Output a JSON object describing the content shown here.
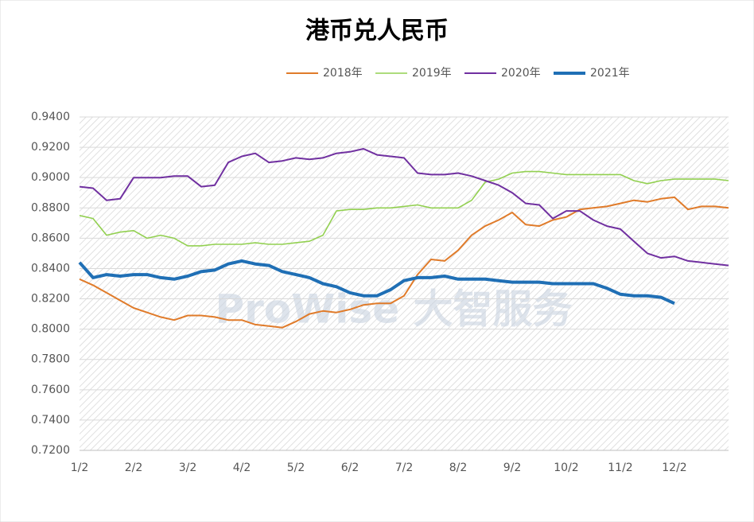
{
  "chart_data": {
    "type": "line",
    "title": "港币兑人民币",
    "watermark": "ProWise 大智服务",
    "categories": [
      "1/2",
      null,
      null,
      null,
      "2/2",
      null,
      null,
      null,
      "3/2",
      null,
      null,
      null,
      "4/2",
      null,
      null,
      null,
      "5/2",
      null,
      null,
      null,
      "6/2",
      null,
      null,
      null,
      "7/2",
      null,
      null,
      null,
      "8/2",
      null,
      null,
      null,
      "9/2",
      null,
      null,
      null,
      "10/2",
      null,
      null,
      null,
      "11/2",
      null,
      null,
      null,
      "12/2",
      null,
      null,
      null,
      null
    ],
    "series": [
      {
        "name": "2018年",
        "color": "#e07b2a",
        "width": 2,
        "values": [
          0.833,
          0.829,
          0.824,
          0.819,
          0.814,
          0.811,
          0.808,
          0.806,
          0.809,
          0.809,
          0.808,
          0.806,
          0.806,
          0.803,
          0.802,
          0.801,
          0.805,
          0.81,
          0.812,
          0.811,
          0.813,
          0.816,
          0.817,
          0.817,
          0.822,
          0.836,
          0.846,
          0.845,
          0.852,
          0.862,
          0.868,
          0.872,
          0.877,
          0.869,
          0.868,
          0.872,
          0.874,
          0.879,
          0.88,
          0.881,
          0.883,
          0.885,
          0.884,
          0.886,
          0.887,
          0.879,
          0.881,
          0.881,
          0.88
        ]
      },
      {
        "name": "2019年",
        "color": "#92d050",
        "width": 1.6,
        "values": [
          0.875,
          0.873,
          0.862,
          0.864,
          0.865,
          0.86,
          0.862,
          0.86,
          0.855,
          0.855,
          0.856,
          0.856,
          0.856,
          0.857,
          0.856,
          0.856,
          0.857,
          0.858,
          0.862,
          0.878,
          0.879,
          0.879,
          0.88,
          0.88,
          0.881,
          0.882,
          0.88,
          0.88,
          0.88,
          0.885,
          0.897,
          0.899,
          0.903,
          0.904,
          0.904,
          0.903,
          0.902,
          0.902,
          0.902,
          0.902,
          0.902,
          0.898,
          0.896,
          0.898,
          0.899,
          0.899,
          0.899,
          0.899,
          0.898
        ]
      },
      {
        "name": "2020年",
        "color": "#7030a0",
        "width": 2,
        "values": [
          0.894,
          0.893,
          0.885,
          0.886,
          0.9,
          0.9,
          0.9,
          0.901,
          0.901,
          0.894,
          0.895,
          0.91,
          0.914,
          0.916,
          0.91,
          0.911,
          0.913,
          0.912,
          0.913,
          0.916,
          0.917,
          0.919,
          0.915,
          0.914,
          0.913,
          0.903,
          0.902,
          0.902,
          0.903,
          0.901,
          0.898,
          0.895,
          0.89,
          0.883,
          0.882,
          0.873,
          0.878,
          0.878,
          0.872,
          0.868,
          0.866,
          0.858,
          0.85,
          0.847,
          0.848,
          0.845,
          0.844,
          0.843,
          0.842
        ]
      },
      {
        "name": "2021年",
        "color": "#1f6fb5",
        "width": 4,
        "values": [
          0.844,
          0.834,
          0.836,
          0.835,
          0.836,
          0.836,
          0.834,
          0.833,
          0.835,
          0.838,
          0.839,
          0.843,
          0.845,
          0.843,
          0.842,
          0.838,
          0.836,
          0.834,
          0.83,
          0.828,
          0.824,
          0.822,
          0.822,
          0.826,
          0.832,
          0.834,
          0.834,
          0.835,
          0.833,
          0.833,
          0.833,
          0.832,
          0.831,
          0.831,
          0.831,
          0.83,
          0.83,
          0.83,
          0.83,
          0.827,
          0.823,
          0.822,
          0.822,
          0.821,
          0.817,
          null,
          null,
          null,
          null
        ]
      }
    ],
    "ylim": [
      0.72,
      0.94
    ],
    "yticks": [
      {
        "value": 0.72,
        "label": "0.7200"
      },
      {
        "value": 0.74,
        "label": "0.7400"
      },
      {
        "value": 0.76,
        "label": "0.7600"
      },
      {
        "value": 0.78,
        "label": "0.7800"
      },
      {
        "value": 0.8,
        "label": "0.8000"
      },
      {
        "value": 0.82,
        "label": "0.8200"
      },
      {
        "value": 0.84,
        "label": "0.8400"
      },
      {
        "value": 0.86,
        "label": "0.8600"
      },
      {
        "value": 0.88,
        "label": "0.8800"
      },
      {
        "value": 0.9,
        "label": "0.9000"
      },
      {
        "value": 0.92,
        "label": "0.9200"
      },
      {
        "value": 0.94,
        "label": "0.9400"
      }
    ],
    "grid": true,
    "legend": "top"
  }
}
